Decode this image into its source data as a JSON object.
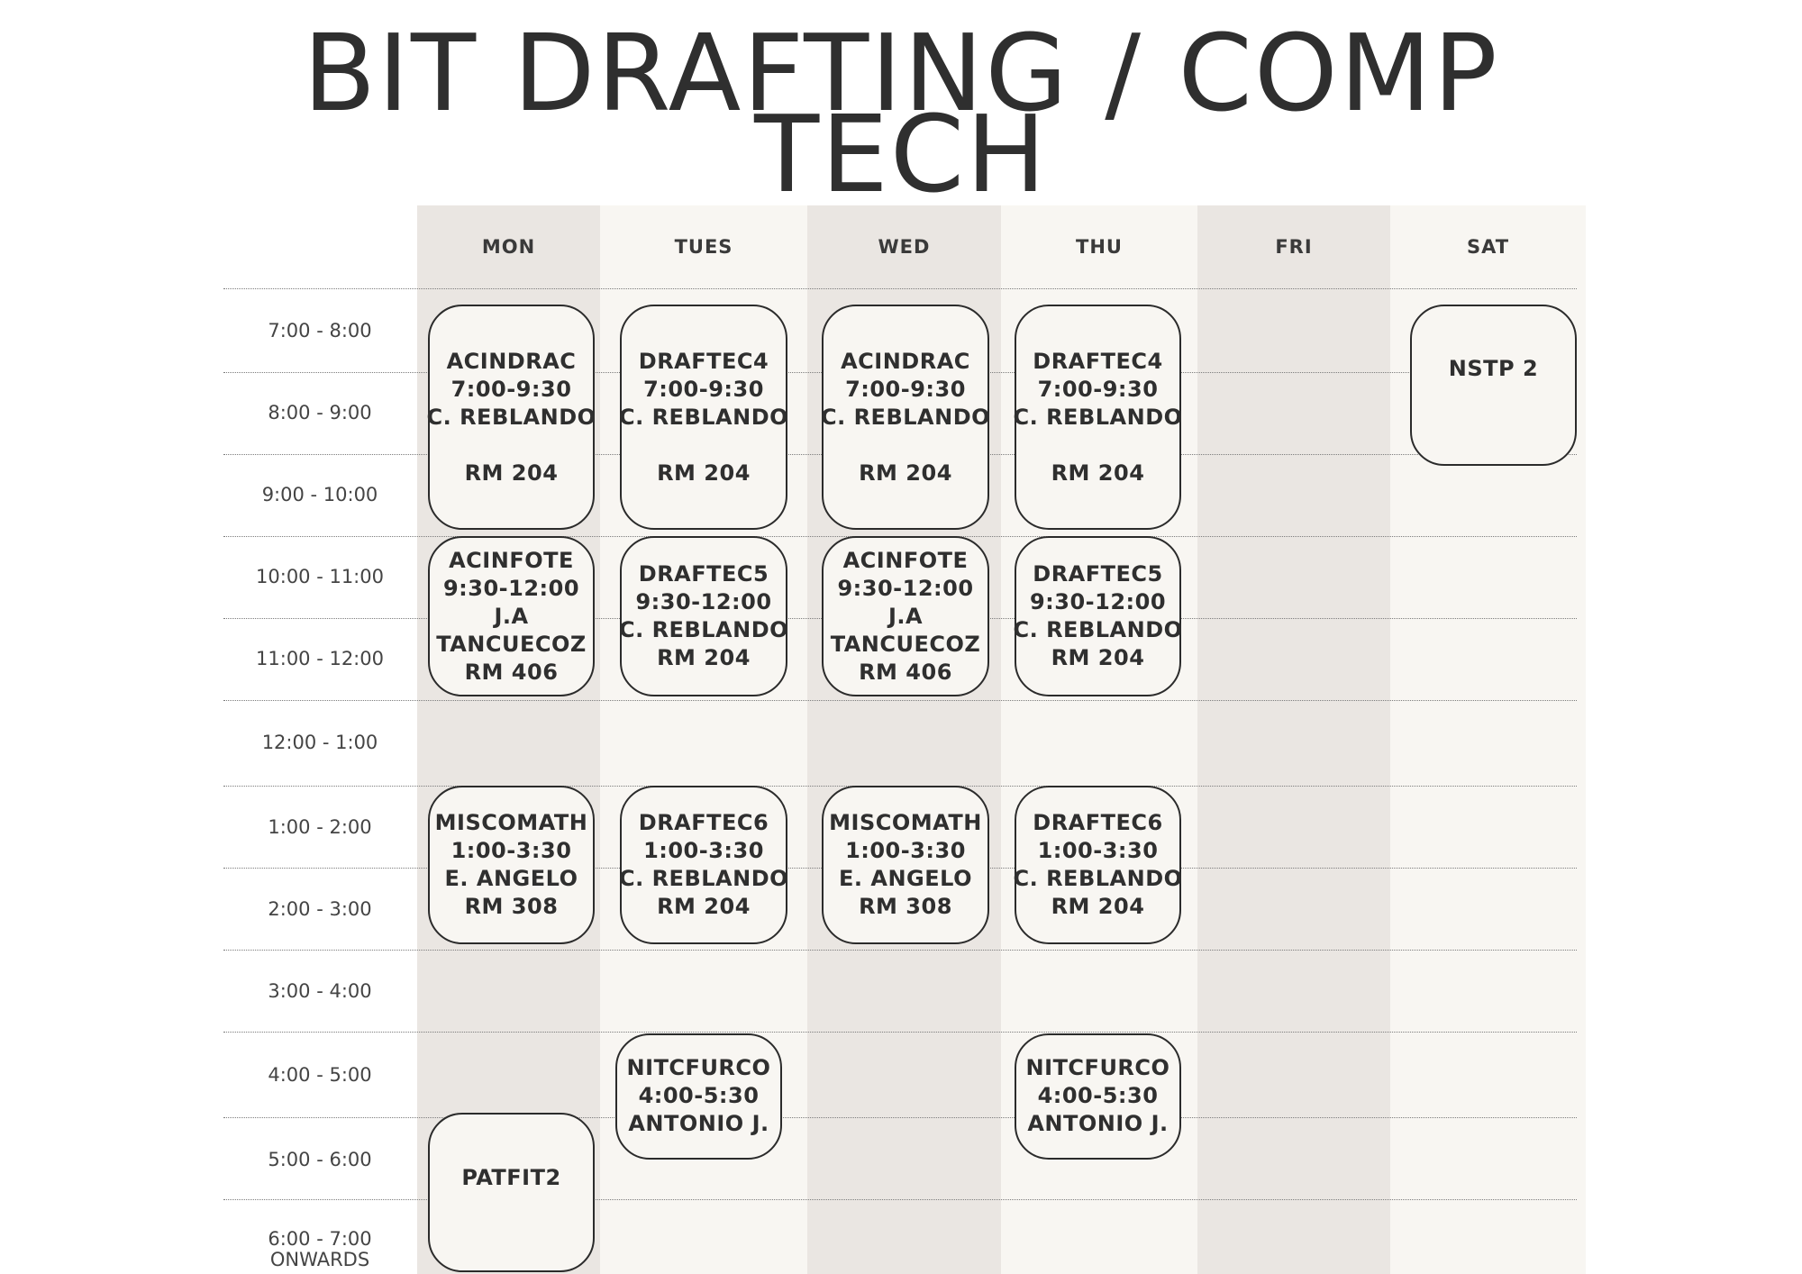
{
  "title": [
    "BIT  DRAFTING / COMP",
    "TECH"
  ],
  "days": [
    "MON",
    "TUES",
    "WED",
    "THU",
    "FRI",
    "SAT"
  ],
  "times": [
    "7:00 - 8:00",
    "8:00 - 9:00",
    "9:00 - 10:00",
    "10:00 - 11:00",
    "11:00 - 12:00",
    "12:00 - 1:00",
    "1:00 - 2:00",
    "2:00 - 3:00",
    "3:00 - 4:00",
    "4:00 - 5:00",
    "5:00 - 6:00",
    "6:00 - 7:00"
  ],
  "last_time_suffix": "ONWARDS",
  "classes": {
    "mon_1": {
      "code": "ACINDRAC",
      "time": "7:00-9:30",
      "instructor": "C. REBLANDO",
      "room": "RM 204"
    },
    "tue_1": {
      "code": "DRAFTEC4",
      "time": "7:00-9:30",
      "instructor": "C. REBLANDO",
      "room": "RM 204"
    },
    "wed_1": {
      "code": "ACINDRAC",
      "time": "7:00-9:30",
      "instructor": "C. REBLANDO",
      "room": "RM 204"
    },
    "thu_1": {
      "code": "DRAFTEC4",
      "time": "7:00-9:30",
      "instructor": "C. REBLANDO",
      "room": "RM 204"
    },
    "sat_1": {
      "code": "NSTP 2"
    },
    "mon_2": {
      "code": "ACINFOTE",
      "time": "9:30-12:00",
      "instructor_1": "J.A",
      "instructor_2": "TANCUECOZ",
      "room": "RM 406"
    },
    "tue_2": {
      "code": "DRAFTEC5",
      "time": "9:30-12:00",
      "instructor": "C. REBLANDO",
      "room": "RM 204"
    },
    "wed_2": {
      "code": "ACINFOTE",
      "time": "9:30-12:00",
      "instructor_1": "J.A",
      "instructor_2": "TANCUECOZ",
      "room": "RM 406"
    },
    "thu_2": {
      "code": "DRAFTEC5",
      "time": "9:30-12:00",
      "instructor": "C. REBLANDO",
      "room": "RM 204"
    },
    "mon_3": {
      "code": "MISCOMATH",
      "time": "1:00-3:30",
      "instructor": "E. ANGELO",
      "room": "RM 308"
    },
    "tue_3": {
      "code": "DRAFTEC6",
      "time": "1:00-3:30",
      "instructor": "C. REBLANDO",
      "room": "RM 204"
    },
    "wed_3": {
      "code": "MISCOMATH",
      "time": "1:00-3:30",
      "instructor": "E. ANGELO",
      "room": "RM 308"
    },
    "thu_3": {
      "code": "DRAFTEC6",
      "time": "1:00-3:30",
      "instructor": "C. REBLANDO",
      "room": "RM 204"
    },
    "tue_4": {
      "code": "NITCFURCO",
      "time": "4:00-5:30",
      "instructor": "ANTONIO J."
    },
    "thu_4": {
      "code": "NITCFURCO",
      "time": "4:00-5:30",
      "instructor": "ANTONIO J."
    },
    "mon_4": {
      "code": "PATFIT2"
    }
  }
}
